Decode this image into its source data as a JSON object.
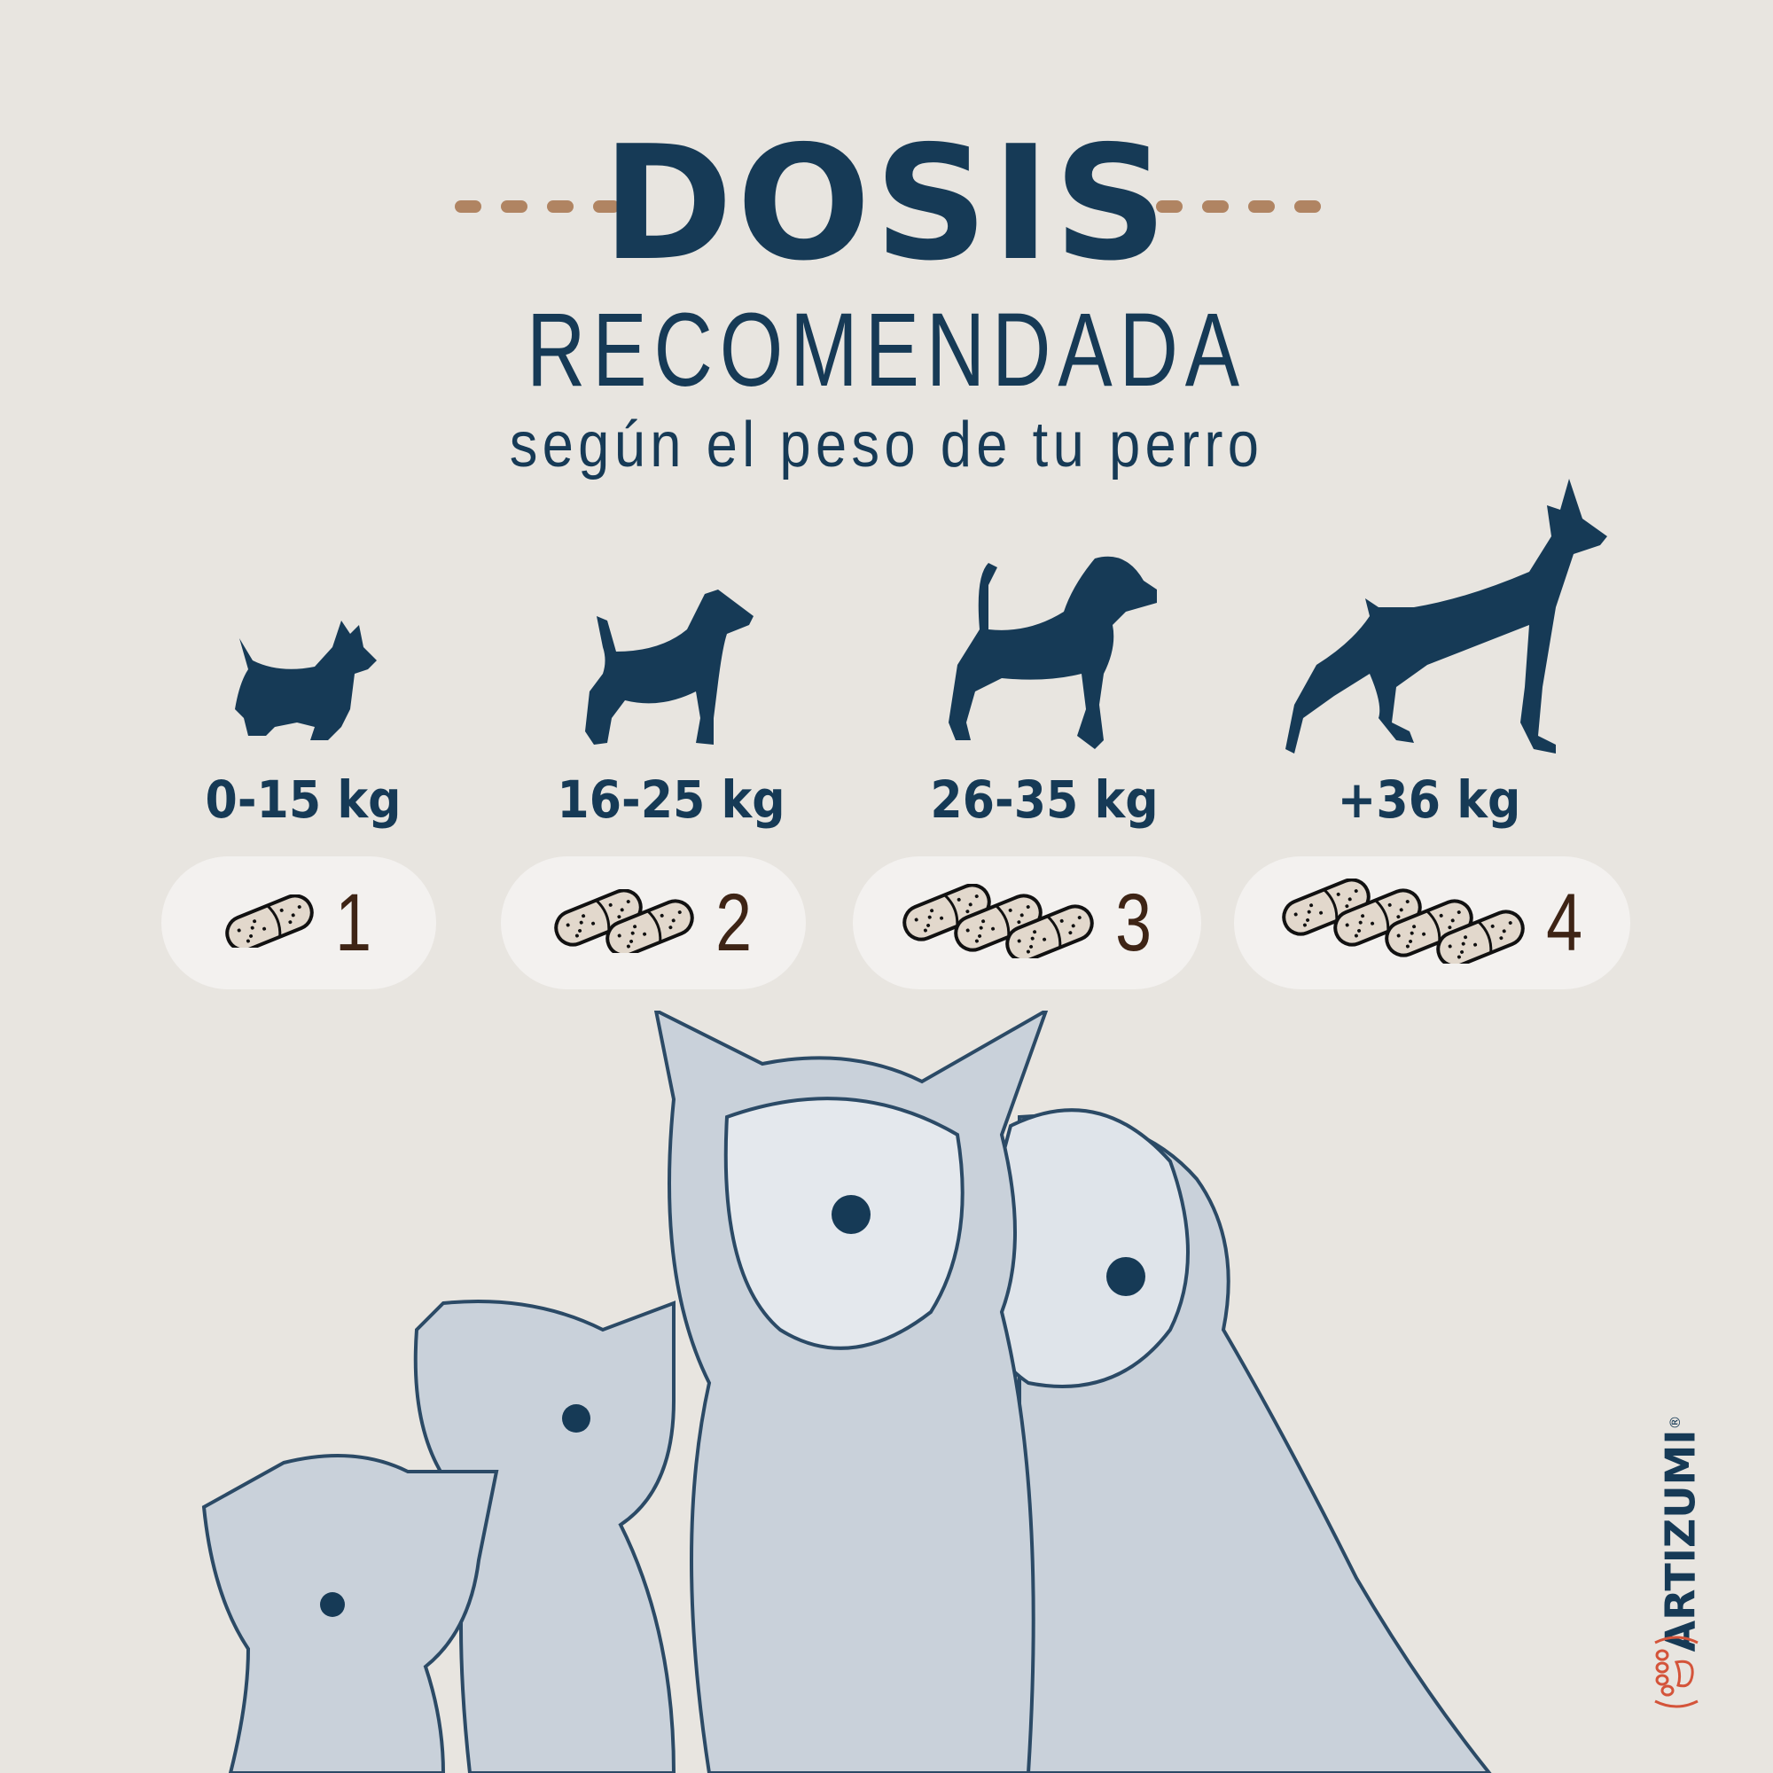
{
  "header": {
    "title": "DOSIS",
    "subtitle": "RECOMENDADA",
    "tagline": "según el peso de tu perro"
  },
  "doses": [
    {
      "weight": "0-15 kg",
      "count": "1",
      "dog": "small-terrier-silhouette"
    },
    {
      "weight": "16-25 kg",
      "count": "2",
      "dog": "wire-fox-terrier-silhouette"
    },
    {
      "weight": "26-35 kg",
      "count": "3",
      "dog": "beagle-silhouette"
    },
    {
      "weight": "+36 kg",
      "count": "4",
      "dog": "doberman-silhouette"
    }
  ],
  "brand": {
    "name": "ARTIZUMI",
    "mark": "®"
  },
  "colors": {
    "background": "#e8e5e0",
    "navy": "#163a56",
    "accent": "#b08462",
    "pill": "#f3f1ef",
    "count": "#3e2415",
    "capsule": "#e2d8cc",
    "logo_paw": "#d4543a"
  }
}
